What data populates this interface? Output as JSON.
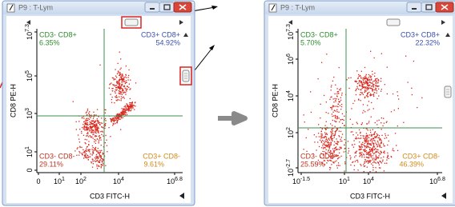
{
  "windows": [
    {
      "title": "P9 : T-Lym",
      "y_axis_label": "CD8 PE-H",
      "x_axis_label": "CD3 FITC-H",
      "y_ticks": [
        {
          "base": "10",
          "exp": "7.3"
        },
        {
          "base": "10",
          "exp": "5"
        },
        {
          "base": "10",
          "exp": "3"
        },
        {
          "base": "10",
          "exp": "1"
        },
        {
          "base": "0"
        }
      ],
      "x_ticks": [
        {
          "base": "0"
        },
        {
          "base": "10",
          "exp": "1"
        },
        {
          "base": "10",
          "exp": "2"
        },
        {
          "base": "10",
          "exp": "4"
        },
        {
          "base": "10",
          "exp": "6.8"
        }
      ],
      "quadrants": [
        {
          "name": "CD3- CD8+",
          "percent": "6.35%"
        },
        {
          "name": "CD3+ CD8+",
          "percent": "54.92%"
        },
        {
          "name": "CD3- CD8-",
          "percent": "29.11%"
        },
        {
          "name": "CD3+ CD8-",
          "percent": "9.61%"
        }
      ]
    },
    {
      "title": "P9 : T-Lym",
      "y_axis_label": "CD8 PE-H",
      "x_axis_label": "CD3 FITC-H",
      "y_ticks": [
        {
          "base": "10",
          "exp": "7.3"
        },
        {
          "base": "10",
          "exp": "6"
        },
        {
          "base": "10",
          "exp": "4"
        },
        {
          "base": "10",
          "exp": "2"
        },
        {
          "base": "10",
          "exp": "-2.7"
        }
      ],
      "x_ticks": [
        {
          "base": "10",
          "exp": "-1.5"
        },
        {
          "base": "10",
          "exp": "1"
        },
        {
          "base": "10",
          "exp": "4"
        },
        {
          "base": "10",
          "exp": "6.8"
        }
      ],
      "quadrants": [
        {
          "name": "CD3- CD8+",
          "percent": "5.70%"
        },
        {
          "name": "CD3+ CD8+",
          "percent": "22.32%"
        },
        {
          "name": "CD3- CD8-",
          "percent": "25.59%"
        },
        {
          "name": "CD3+ CD8-",
          "percent": "46.39%"
        }
      ]
    }
  ]
}
